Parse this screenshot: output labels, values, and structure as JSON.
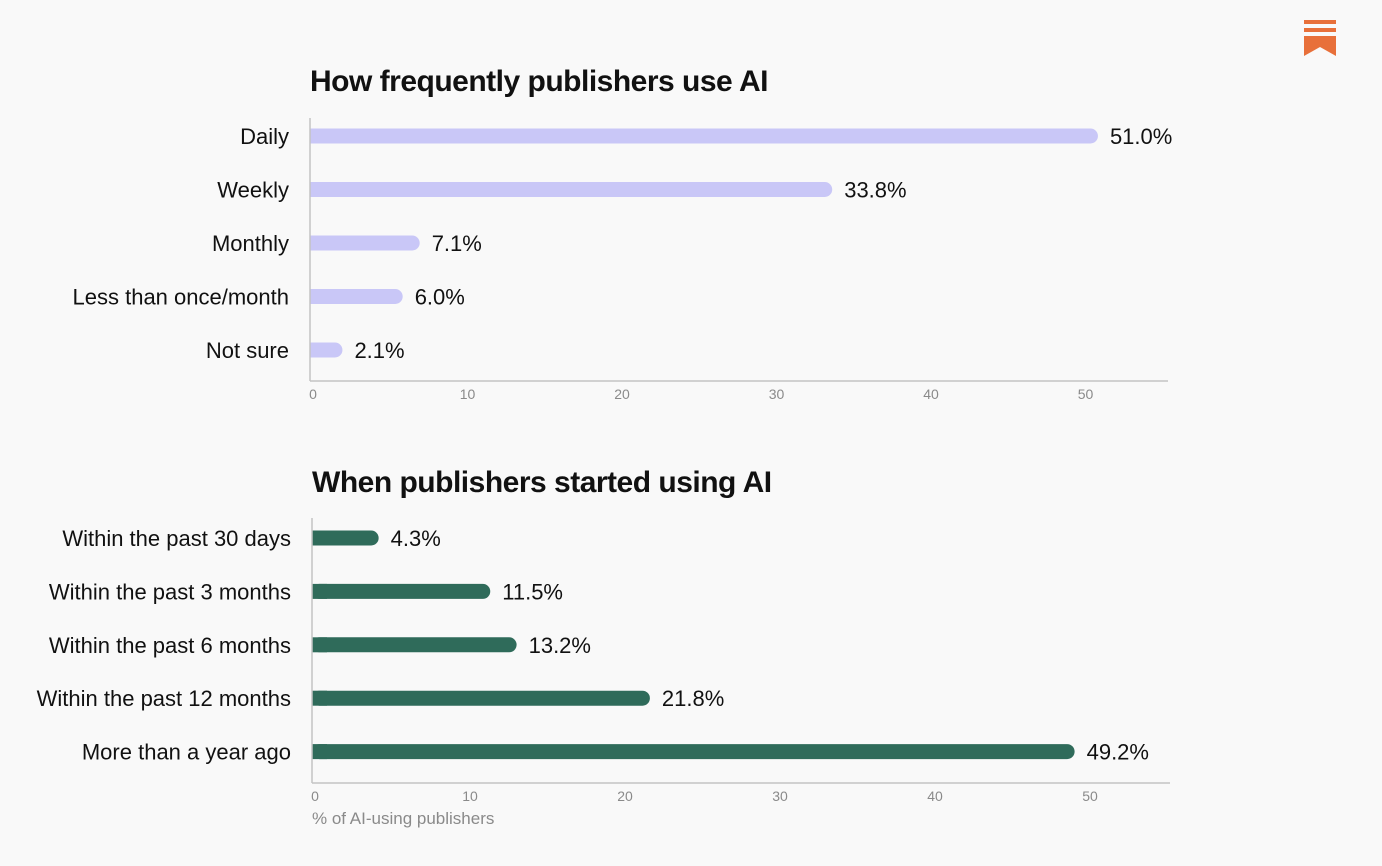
{
  "logo_icon": "substack-bookmark-icon",
  "colors": {
    "logo": "#e8703a",
    "series1": "#c9c7f7",
    "series2": "#2f6b5a"
  },
  "chart_data": [
    {
      "type": "bar",
      "orientation": "horizontal",
      "title": "How frequently publishers use AI",
      "categories": [
        "Daily",
        "Weekly",
        "Monthly",
        "Less than once/month",
        "Not sure"
      ],
      "values": [
        51.0,
        33.8,
        7.1,
        6.0,
        2.1
      ],
      "value_labels": [
        "51.0%",
        "33.8%",
        "7.1%",
        "6.0%",
        "2.1%"
      ],
      "xlim": [
        0,
        55
      ],
      "xticks": [
        0,
        10,
        20,
        30,
        40,
        50
      ],
      "xlabel": "",
      "grid": false
    },
    {
      "type": "bar",
      "orientation": "horizontal",
      "title": "When publishers started using AI",
      "categories": [
        "Within the past 30 days",
        "Within the past 3 months",
        "Within the past 6 months",
        "Within the past 12 months",
        "More than a year ago"
      ],
      "values": [
        4.3,
        11.5,
        13.2,
        21.8,
        49.2
      ],
      "value_labels": [
        "4.3%",
        "11.5%",
        "13.2%",
        "21.8%",
        "49.2%"
      ],
      "xlim": [
        0,
        55
      ],
      "xticks": [
        0,
        10,
        20,
        30,
        40,
        50
      ],
      "xlabel": "% of AI-using publishers",
      "grid": false
    }
  ]
}
